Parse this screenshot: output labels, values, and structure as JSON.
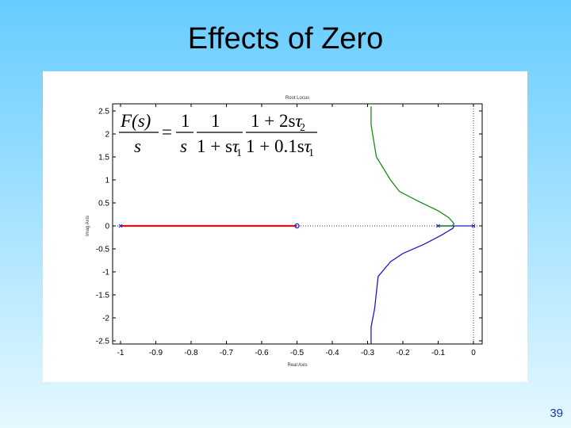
{
  "slide": {
    "title": "Effects of Zero",
    "number": "39"
  },
  "equation": {
    "lhs_num": "F(s)",
    "lhs_den": "s",
    "equals": "=",
    "f1_num": "1",
    "f1_den": "s",
    "f2_num": "1",
    "f2_den_a": "1 + s",
    "f2_den_tau": "τ",
    "f2_den_sub": "1",
    "f3_num_a": "1 + 2s",
    "f3_num_tau": "τ",
    "f3_num_sub": "2",
    "f3_den_a": "1 + 0.1s",
    "f3_den_tau": "τ",
    "f3_den_sub": "1"
  },
  "chart_data": {
    "type": "line",
    "title": "Root Locus",
    "xlabel": "Real Axis",
    "ylabel": "Imag Axis",
    "xlim": [
      -1.0,
      0.0
    ],
    "ylim": [
      -2.5,
      2.5
    ],
    "xticks": [
      "-1",
      "-0.9",
      "-0.8",
      "-0.7",
      "-0.6",
      "-0.5",
      "-0.4",
      "-0.3",
      "-0.2",
      "-0.1",
      "0"
    ],
    "yticks": [
      "2.5",
      "2",
      "1.5",
      "1",
      "0.5",
      "0",
      "-0.5",
      "-1",
      "-1.5",
      "-2",
      "-2.5"
    ],
    "grid": false,
    "series": [
      {
        "color": "#e01010",
        "points": [
          [
            -1.0,
            0
          ],
          [
            -0.5,
            0
          ]
        ]
      },
      {
        "color": "#1a8a1a",
        "points": [
          [
            -0.29,
            2.6
          ],
          [
            -0.29,
            2.2
          ],
          [
            -0.275,
            1.5
          ],
          [
            -0.235,
            1.0
          ],
          [
            -0.21,
            0.75
          ],
          [
            -0.16,
            0.55
          ],
          [
            -0.1,
            0.33
          ],
          [
            -0.07,
            0.18
          ],
          [
            -0.055,
            0.05
          ],
          [
            -0.06,
            0
          ],
          [
            -0.1,
            0
          ]
        ]
      },
      {
        "color": "#1a1acc",
        "points": [
          [
            -0.1,
            0
          ],
          [
            -0.055,
            0
          ],
          [
            -0.058,
            -0.05
          ],
          [
            -0.09,
            -0.2
          ],
          [
            -0.14,
            -0.4
          ],
          [
            -0.2,
            -0.6
          ],
          [
            -0.235,
            -0.78
          ],
          [
            -0.27,
            -1.1
          ],
          [
            -0.28,
            -1.8
          ],
          [
            -0.29,
            -2.2
          ],
          [
            -0.29,
            -2.6
          ]
        ]
      },
      {
        "color": "#1a1acc",
        "points": [
          [
            -0.055,
            0
          ],
          [
            -0.003,
            0
          ]
        ]
      },
      {
        "color": "#1a8a1a",
        "points": [
          [
            -0.103,
            0
          ],
          [
            -0.058,
            0
          ]
        ]
      }
    ],
    "markers": [
      {
        "type": "zero",
        "x": -0.5,
        "y": 0
      },
      {
        "type": "pole",
        "x": -1.0,
        "y": 0
      },
      {
        "type": "pole",
        "x": -0.1,
        "y": 0
      },
      {
        "type": "pole",
        "x": 0.0,
        "y": 0
      }
    ]
  }
}
